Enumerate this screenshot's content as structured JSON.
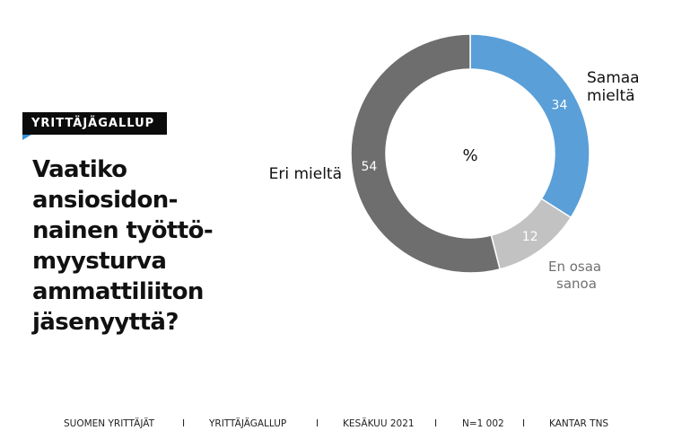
{
  "badge": {
    "label": "YRITTÄJÄGALLUP"
  },
  "question": {
    "lines": [
      "Vaatiko",
      "ansiosidon-",
      "nainen työttö-",
      "myysturva",
      "ammattiliiton",
      "jäsenyyttä?"
    ]
  },
  "chart_data": {
    "type": "pie",
    "variant": "donut",
    "center_label": "%",
    "slices": [
      {
        "label": "Samaa mieltä",
        "value": 34,
        "color": "#5a9fd8"
      },
      {
        "label": "En osaa sanoa",
        "value": 12,
        "color": "#c2c2c2"
      },
      {
        "label": "Eri mieltä",
        "value": 54,
        "color": "#6e6e6e"
      }
    ],
    "label_colors": {
      "Samaa mieltä": "#111111",
      "En osaa sanoa": "#707070",
      "Eri mieltä": "#111111"
    }
  },
  "footer": {
    "items": [
      "SUOMEN YRITTÄJÄT",
      "YRITTÄJÄGALLUP",
      "KESÄKUU 2021",
      "N=1 002",
      "KANTAR TNS"
    ],
    "separator": "I"
  }
}
